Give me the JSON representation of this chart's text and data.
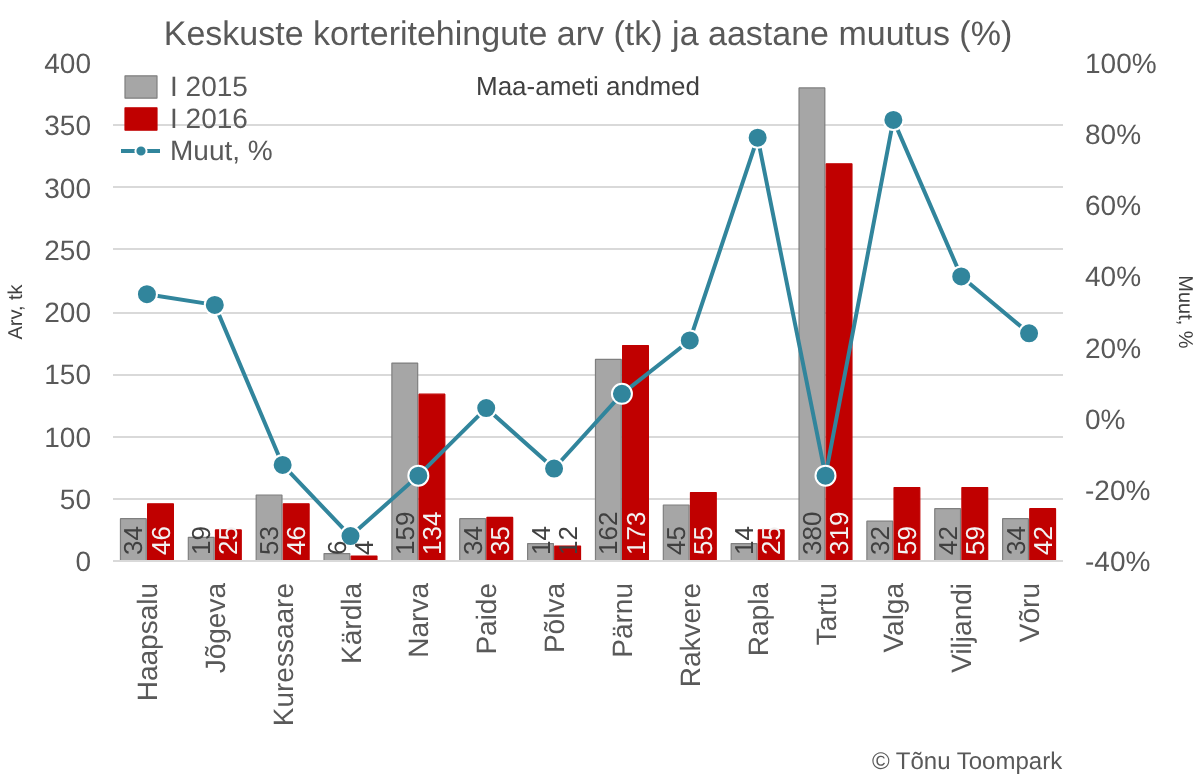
{
  "chart_data": {
    "type": "bar",
    "title": "Keskuste korteritehingute arv (tk) ja aastane muutus (%)",
    "subtitle": "Maa-ameti andmed",
    "ylabel": "Arv, tk",
    "y2label": "Muut, %",
    "categories": [
      "Haapsalu",
      "Jõgeva",
      "Kuressaare",
      "Kärdla",
      "Narva",
      "Paide",
      "Põlva",
      "Pärnu",
      "Rakvere",
      "Rapla",
      "Tartu",
      "Valga",
      "Viljandi",
      "Võru"
    ],
    "series": [
      {
        "name": "I 2015",
        "color": "#a6a6a6",
        "values": [
          34,
          19,
          53,
          6,
          159,
          34,
          14,
          162,
          45,
          14,
          380,
          32,
          42,
          34
        ],
        "value_labels": [
          "34",
          "19",
          "53",
          "6",
          "159",
          "34",
          "14",
          "162",
          "45",
          "14",
          "380",
          "32",
          "42",
          "34"
        ]
      },
      {
        "name": "I 2016",
        "color": "#c00000",
        "values": [
          46,
          25,
          46,
          4,
          134,
          35,
          12,
          173,
          55,
          25,
          319,
          59,
          59,
          42
        ],
        "value_labels": [
          "46",
          "25",
          "46",
          "4",
          "134",
          "35",
          "12",
          "173",
          "55",
          "25",
          "319",
          "59",
          "59",
          "42"
        ]
      },
      {
        "name": "Muut, %",
        "type": "line",
        "axis": "y2",
        "color": "#31859c",
        "marker": "circle",
        "values": [
          35,
          32,
          -13,
          -33,
          -16,
          3,
          -14,
          7,
          22,
          79,
          -16,
          84,
          40,
          24
        ]
      }
    ],
    "ylim": [
      0,
      400
    ],
    "yticks": [
      0,
      50,
      100,
      150,
      200,
      250,
      300,
      350,
      400
    ],
    "y2lim": [
      -40,
      100
    ],
    "y2ticks": [
      {
        "value": -40,
        "label": "-40%"
      },
      {
        "value": -20,
        "label": "-20%"
      },
      {
        "value": 0,
        "label": "0%"
      },
      {
        "value": 20,
        "label": "20%"
      },
      {
        "value": 40,
        "label": "40%"
      },
      {
        "value": 60,
        "label": "60%"
      },
      {
        "value": 80,
        "label": "80%"
      },
      {
        "value": 100,
        "label": "100%"
      }
    ],
    "grid": "y",
    "legend": "top left",
    "annotations": [
      "© Tõnu Toompark"
    ]
  }
}
